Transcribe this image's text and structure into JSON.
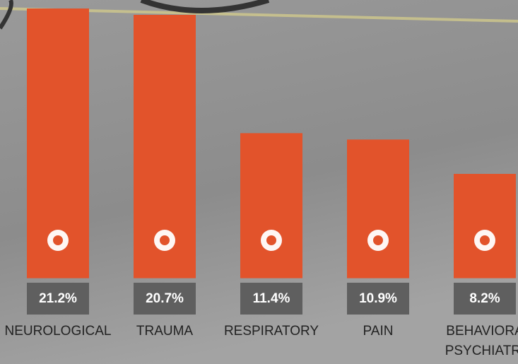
{
  "chart_data": {
    "type": "bar",
    "categories": [
      [
        "NEUROLOGICAL"
      ],
      [
        "TRAUMA"
      ],
      [
        "RESPIRATORY"
      ],
      [
        "PAIN"
      ],
      [
        "BEHAVIORA",
        "PSYCHIATRI"
      ]
    ],
    "values": [
      21.2,
      20.7,
      11.4,
      10.9,
      8.2
    ],
    "value_labels": [
      "21.2%",
      "20.7%",
      "11.4%",
      "10.9%",
      "8.2%"
    ],
    "color": "#e2532b",
    "label_box_color": "#5f5f5f",
    "ylim": [
      0,
      21.2
    ]
  }
}
